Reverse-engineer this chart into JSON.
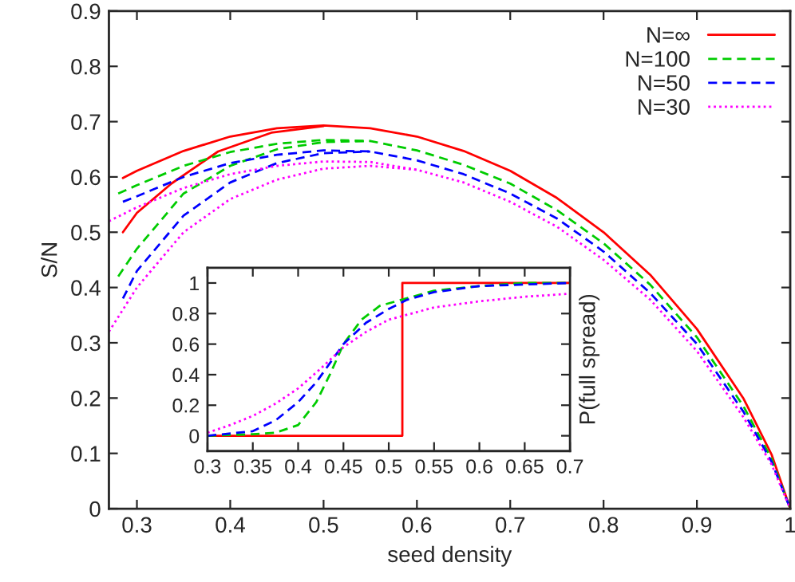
{
  "chart_data": [
    {
      "type": "line",
      "xlabel": "seed density",
      "ylabel": "S/N",
      "xlim": [
        0.27,
        1.0
      ],
      "xticks": [
        0.3,
        0.4,
        0.5,
        0.6,
        0.7,
        0.8,
        0.9,
        1
      ],
      "ylim": [
        0,
        0.9
      ],
      "yticks": [
        0,
        0.1,
        0.2,
        0.3,
        0.4,
        0.5,
        0.6,
        0.7,
        0.8,
        0.9
      ],
      "legend": "top right",
      "grid": false,
      "series": [
        {
          "name": "N=∞",
          "color": "#ff0000",
          "line_style": "solid",
          "x": [
            0.285,
            0.3,
            0.35,
            0.4,
            0.45,
            0.5,
            0.55,
            0.6,
            0.65,
            0.7,
            0.75,
            0.8,
            0.85,
            0.9,
            0.95,
            0.98,
            1.0
          ],
          "values": [
            0.598,
            0.611,
            0.647,
            0.673,
            0.688,
            0.693,
            0.688,
            0.673,
            0.647,
            0.611,
            0.562,
            0.5,
            0.423,
            0.325,
            0.199,
            0.098,
            0
          ]
        },
        {
          "color": "#ff0000",
          "line_style": "solid",
          "x": [
            0.285,
            0.3,
            0.337,
            0.387,
            0.444,
            0.5
          ],
          "values": [
            0.5,
            0.535,
            0.588,
            0.646,
            0.68,
            0.692
          ]
        },
        {
          "name": "N=100",
          "color": "#00cc00",
          "line_style": "dashed",
          "x": [
            0.28,
            0.3,
            0.35,
            0.4,
            0.45,
            0.5,
            0.55,
            0.6,
            0.65,
            0.7,
            0.75,
            0.8,
            0.85,
            0.9,
            0.95,
            0.98,
            1.0
          ],
          "values": [
            0.57,
            0.585,
            0.62,
            0.645,
            0.66,
            0.667,
            0.665,
            0.648,
            0.622,
            0.588,
            0.54,
            0.48,
            0.405,
            0.31,
            0.185,
            0.09,
            0
          ]
        },
        {
          "color": "#00cc00",
          "line_style": "dashed",
          "x": [
            0.28,
            0.3,
            0.35,
            0.4,
            0.45,
            0.5,
            0.55
          ],
          "values": [
            0.42,
            0.47,
            0.57,
            0.62,
            0.65,
            0.663,
            0.665
          ]
        },
        {
          "name": "N=50",
          "color": "#0000ff",
          "line_style": "dashed",
          "x": [
            0.285,
            0.3,
            0.35,
            0.4,
            0.45,
            0.5,
            0.55,
            0.6,
            0.65,
            0.7,
            0.75,
            0.8,
            0.85,
            0.9,
            0.95,
            0.98,
            1.0
          ],
          "values": [
            0.555,
            0.565,
            0.6,
            0.625,
            0.64,
            0.648,
            0.646,
            0.63,
            0.605,
            0.57,
            0.525,
            0.465,
            0.39,
            0.298,
            0.175,
            0.085,
            0
          ]
        },
        {
          "color": "#0000ff",
          "line_style": "dashed",
          "x": [
            0.285,
            0.3,
            0.35,
            0.4,
            0.45,
            0.5,
            0.55
          ],
          "values": [
            0.38,
            0.43,
            0.53,
            0.59,
            0.625,
            0.643,
            0.646
          ]
        },
        {
          "name": "N=30",
          "color": "#ff00ff",
          "line_style": "dotted",
          "x": [
            0.27,
            0.3,
            0.35,
            0.4,
            0.45,
            0.5,
            0.55,
            0.6,
            0.65,
            0.7,
            0.75,
            0.8,
            0.85,
            0.9,
            0.95,
            0.98,
            1.0
          ],
          "values": [
            0.52,
            0.545,
            0.58,
            0.605,
            0.62,
            0.628,
            0.627,
            0.613,
            0.59,
            0.555,
            0.51,
            0.45,
            0.378,
            0.285,
            0.165,
            0.08,
            0
          ]
        },
        {
          "color": "#ff00ff",
          "line_style": "dotted",
          "x": [
            0.27,
            0.3,
            0.35,
            0.4,
            0.45,
            0.5,
            0.55,
            0.6
          ],
          "values": [
            0.32,
            0.4,
            0.5,
            0.56,
            0.595,
            0.615,
            0.62,
            0.613
          ]
        }
      ]
    },
    {
      "type": "line",
      "ylabel": "P(full spread)",
      "xlim": [
        0.3,
        0.7
      ],
      "xticks": [
        0.3,
        0.35,
        0.4,
        0.45,
        0.5,
        0.55,
        0.6,
        0.65,
        0.7
      ],
      "ylim": [
        -0.1,
        1.1
      ],
      "yticks": [
        0,
        0.2,
        0.4,
        0.6,
        0.8,
        1
      ],
      "grid": false,
      "series": [
        {
          "color": "#ff0000",
          "line_style": "solid",
          "x": [
            0.3,
            0.515,
            0.515,
            0.7
          ],
          "values": [
            0,
            0,
            1,
            1
          ]
        },
        {
          "color": "#00cc00",
          "line_style": "dashed",
          "x": [
            0.3,
            0.35,
            0.375,
            0.4,
            0.42,
            0.435,
            0.45,
            0.47,
            0.49,
            0.52,
            0.55,
            0.6,
            0.65,
            0.7
          ],
          "values": [
            0,
            0.01,
            0.02,
            0.07,
            0.22,
            0.4,
            0.6,
            0.76,
            0.85,
            0.9,
            0.95,
            0.98,
            1.0,
            1.0
          ]
        },
        {
          "color": "#0000ff",
          "line_style": "dashed",
          "x": [
            0.3,
            0.35,
            0.375,
            0.4,
            0.42,
            0.45,
            0.475,
            0.5,
            0.52,
            0.55,
            0.6,
            0.65,
            0.7
          ],
          "values": [
            0,
            0.03,
            0.1,
            0.22,
            0.35,
            0.6,
            0.74,
            0.83,
            0.89,
            0.94,
            0.98,
            0.99,
            1.0
          ]
        },
        {
          "color": "#ff00ff",
          "line_style": "dotted",
          "x": [
            0.3,
            0.325,
            0.35,
            0.375,
            0.4,
            0.425,
            0.45,
            0.475,
            0.5,
            0.525,
            0.55,
            0.6,
            0.65,
            0.7
          ],
          "values": [
            0.02,
            0.07,
            0.13,
            0.21,
            0.31,
            0.44,
            0.58,
            0.68,
            0.76,
            0.8,
            0.84,
            0.88,
            0.91,
            0.93
          ]
        }
      ]
    }
  ]
}
